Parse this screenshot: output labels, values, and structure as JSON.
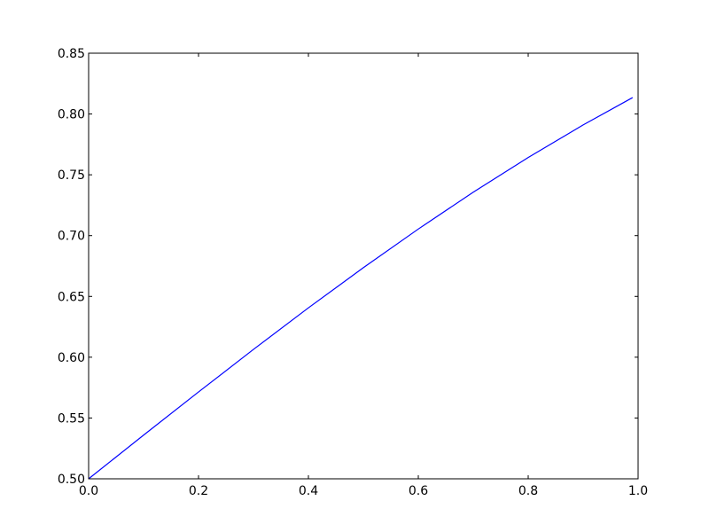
{
  "chart_data": {
    "type": "line",
    "title": "",
    "xlabel": "",
    "ylabel": "",
    "xlim": [
      0.0,
      1.0
    ],
    "ylim": [
      0.5,
      0.85
    ],
    "grid": false,
    "xticks": [
      "0.0",
      "0.2",
      "0.4",
      "0.6",
      "0.8",
      "1.0"
    ],
    "yticks": [
      "0.50",
      "0.55",
      "0.60",
      "0.65",
      "0.70",
      "0.75",
      "0.80",
      "0.85"
    ],
    "series": [
      {
        "color": "#0000ff",
        "x": [
          0.0,
          0.1,
          0.2,
          0.3,
          0.4,
          0.5,
          0.6,
          0.7,
          0.8,
          0.9,
          0.99
        ],
        "y": [
          0.5,
          0.5359,
          0.5714,
          0.6064,
          0.6406,
          0.6736,
          0.7054,
          0.7357,
          0.7642,
          0.791,
          0.8135
        ]
      }
    ]
  }
}
